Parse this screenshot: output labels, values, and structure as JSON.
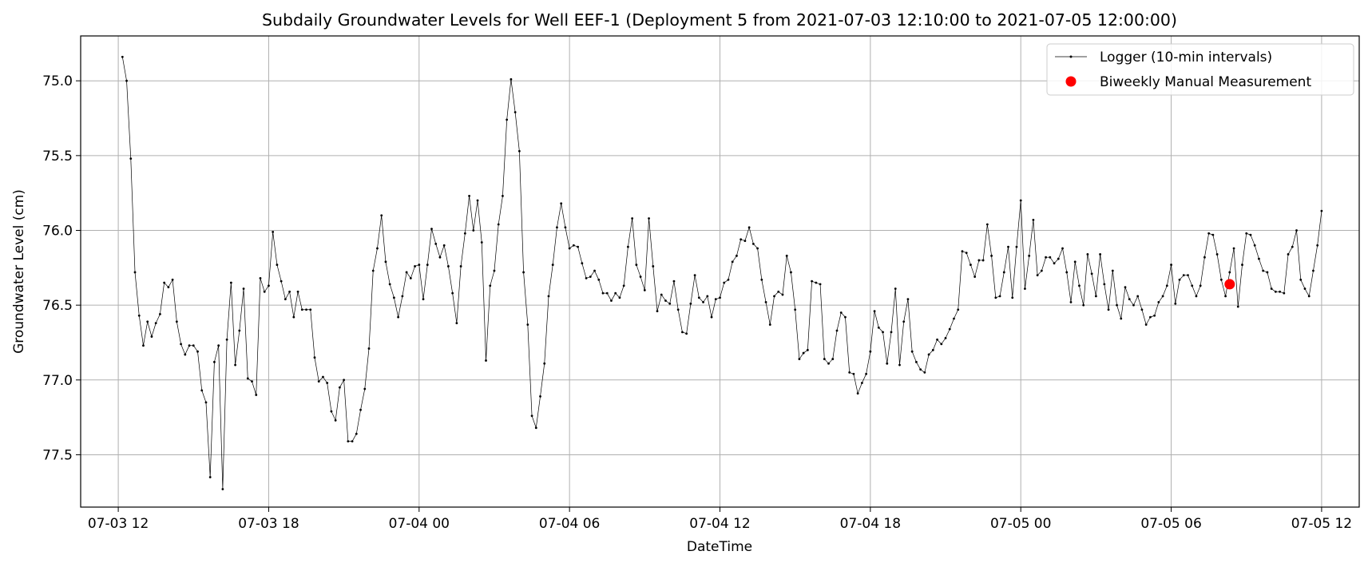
{
  "chart_data": {
    "type": "line",
    "title": "Subdaily Groundwater Levels for Well EEF-1 (Deployment 5 from 2021-07-03 12:10:00 to 2021-07-05 12:00:00)",
    "xlabel": "DateTime",
    "ylabel": "Groundwater Level (cm)",
    "x_range": [
      "2021-07-03 10:30:00",
      "2021-07-05 13:30:00"
    ],
    "ylim": [
      77.85,
      74.7
    ],
    "y_inverted": true,
    "grid": true,
    "legend_position": "top-right",
    "x_ticks": [
      {
        "value": "2021-07-03 12:00:00",
        "label": "07-03 12"
      },
      {
        "value": "2021-07-03 18:00:00",
        "label": "07-03 18"
      },
      {
        "value": "2021-07-04 00:00:00",
        "label": "07-04 00"
      },
      {
        "value": "2021-07-04 06:00:00",
        "label": "07-04 06"
      },
      {
        "value": "2021-07-04 12:00:00",
        "label": "07-04 12"
      },
      {
        "value": "2021-07-04 18:00:00",
        "label": "07-04 18"
      },
      {
        "value": "2021-07-05 00:00:00",
        "label": "07-05 00"
      },
      {
        "value": "2021-07-05 06:00:00",
        "label": "07-05 06"
      },
      {
        "value": "2021-07-05 12:00:00",
        "label": "07-05 12"
      }
    ],
    "y_ticks": [
      {
        "value": 75.0,
        "label": "75.0"
      },
      {
        "value": 75.5,
        "label": "75.5"
      },
      {
        "value": 76.0,
        "label": "76.0"
      },
      {
        "value": 76.5,
        "label": "76.5"
      },
      {
        "value": 77.0,
        "label": "77.0"
      },
      {
        "value": 77.5,
        "label": "77.5"
      }
    ],
    "series": [
      {
        "name": "Logger (10-min intervals)",
        "color": "#000000",
        "style": "line-with-dots",
        "start": "2021-07-03 12:10:00",
        "interval_minutes": 10,
        "values": [
          74.84,
          75.0,
          75.52,
          76.28,
          76.57,
          76.77,
          76.61,
          76.71,
          76.62,
          76.56,
          76.35,
          76.38,
          76.33,
          76.61,
          76.76,
          76.83,
          76.77,
          76.77,
          76.81,
          77.07,
          77.15,
          77.65,
          76.88,
          76.77,
          77.73,
          76.73,
          76.35,
          76.9,
          76.67,
          76.39,
          76.99,
          77.01,
          77.1,
          76.32,
          76.41,
          76.37,
          76.01,
          76.23,
          76.34,
          76.46,
          76.41,
          76.58,
          76.41,
          76.53,
          76.53,
          76.53,
          76.85,
          77.01,
          76.98,
          77.02,
          77.21,
          77.27,
          77.05,
          77.0,
          77.41,
          77.41,
          77.36,
          77.2,
          77.06,
          76.79,
          76.27,
          76.12,
          75.9,
          76.21,
          76.36,
          76.45,
          76.58,
          76.44,
          76.28,
          76.32,
          76.24,
          76.23,
          76.46,
          76.23,
          75.99,
          76.09,
          76.18,
          76.1,
          76.24,
          76.42,
          76.62,
          76.24,
          76.02,
          75.77,
          76.0,
          75.8,
          76.08,
          76.87,
          76.37,
          76.27,
          75.96,
          75.77,
          75.26,
          74.99,
          75.21,
          75.47,
          76.28,
          76.63,
          77.24,
          77.32,
          77.11,
          76.89,
          76.44,
          76.23,
          75.98,
          75.82,
          75.98,
          76.12,
          76.1,
          76.11,
          76.22,
          76.32,
          76.31,
          76.27,
          76.33,
          76.42,
          76.42,
          76.47,
          76.42,
          76.45,
          76.37,
          76.11,
          75.92,
          76.23,
          76.31,
          76.4,
          75.92,
          76.24,
          76.54,
          76.43,
          76.47,
          76.49,
          76.34,
          76.53,
          76.68,
          76.69,
          76.49,
          76.3,
          76.45,
          76.48,
          76.44,
          76.58,
          76.46,
          76.45,
          76.35,
          76.33,
          76.21,
          76.17,
          76.06,
          76.07,
          75.98,
          76.09,
          76.12,
          76.33,
          76.48,
          76.63,
          76.44,
          76.41,
          76.43,
          76.17,
          76.28,
          76.53,
          76.86,
          76.82,
          76.8,
          76.34,
          76.35,
          76.36,
          76.86,
          76.89,
          76.86,
          76.67,
          76.55,
          76.58,
          76.95,
          76.96,
          77.09,
          77.02,
          76.96,
          76.81,
          76.54,
          76.65,
          76.68,
          76.89,
          76.68,
          76.39,
          76.9,
          76.61,
          76.46,
          76.81,
          76.88,
          76.93,
          76.95,
          76.83,
          76.8,
          76.73,
          76.76,
          76.72,
          76.66,
          76.59,
          76.53,
          76.14,
          76.15,
          76.23,
          76.31,
          76.2,
          76.2,
          75.96,
          76.17,
          76.45,
          76.44,
          76.28,
          76.11,
          76.45,
          76.11,
          75.8,
          76.39,
          76.17,
          75.93,
          76.3,
          76.27,
          76.18,
          76.18,
          76.22,
          76.19,
          76.12,
          76.28,
          76.48,
          76.21,
          76.37,
          76.5,
          76.16,
          76.29,
          76.44,
          76.16,
          76.36,
          76.53,
          76.27,
          76.5,
          76.59,
          76.38,
          76.46,
          76.5,
          76.44,
          76.53,
          76.63,
          76.58,
          76.57,
          76.48,
          76.44,
          76.37,
          76.23,
          76.49,
          76.33,
          76.3,
          76.3,
          76.37,
          76.44,
          76.37,
          76.18,
          76.02,
          76.03,
          76.16,
          76.33,
          76.44,
          76.28,
          76.12,
          76.51,
          76.23,
          76.02,
          76.03,
          76.1,
          76.19,
          76.27,
          76.28,
          76.39,
          76.41,
          76.41,
          76.42,
          76.16,
          76.11,
          76.0,
          76.33,
          76.39,
          76.44,
          76.27,
          76.1,
          75.87
        ]
      },
      {
        "name": "Biweekly Manual Measurement",
        "color": "#ff0000",
        "style": "marker",
        "points": [
          {
            "x": "2021-07-05 08:20:00",
            "y": 76.36
          }
        ]
      }
    ]
  }
}
